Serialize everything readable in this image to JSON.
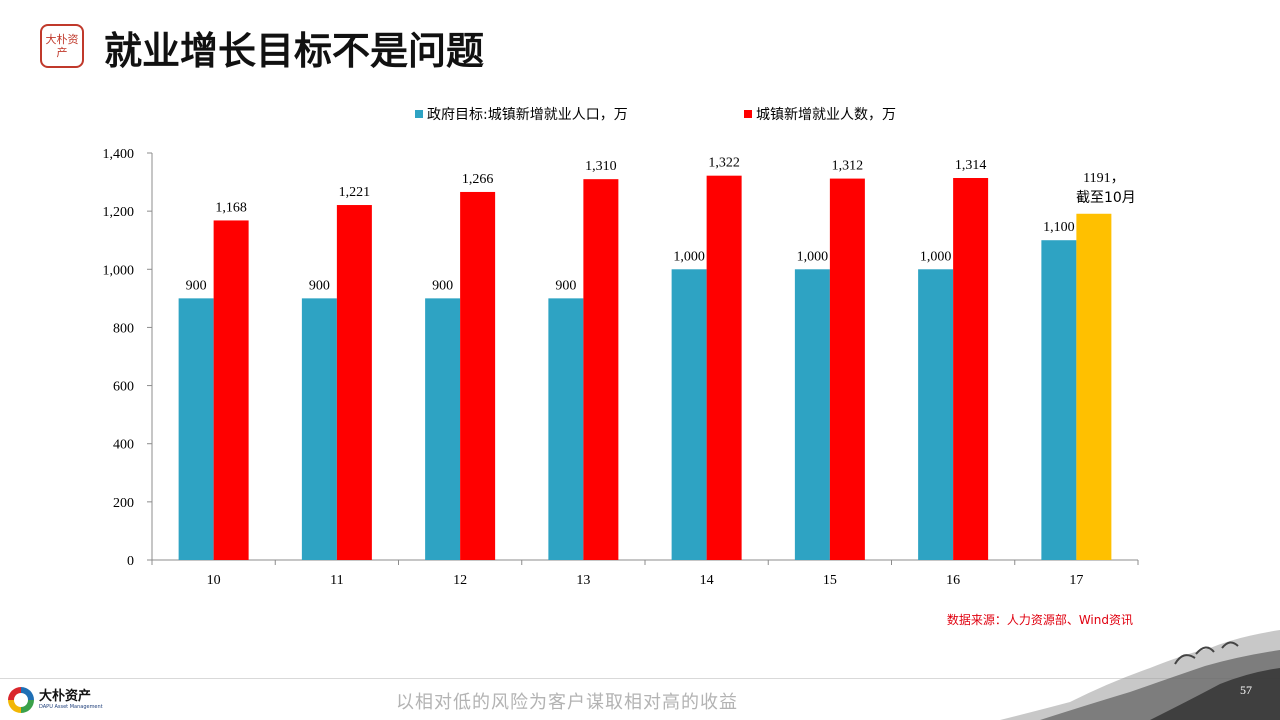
{
  "header": {
    "title": "就业增长目标不是问题",
    "seal_text": "大朴资产"
  },
  "chart_data": {
    "type": "bar",
    "categories": [
      "10",
      "11",
      "12",
      "13",
      "14",
      "15",
      "16",
      "17"
    ],
    "series": [
      {
        "name": "政府目标:城镇新增就业人口，万",
        "color": "#2ea3c3",
        "values": [
          900,
          900,
          900,
          900,
          1000,
          1000,
          1000,
          1100
        ],
        "labels": [
          "900",
          "900",
          "900",
          "900",
          "1,000",
          "1,000",
          "1,000",
          "1,100"
        ]
      },
      {
        "name": "城镇新增就业人数，万",
        "color": "#ff0000",
        "values": [
          1168,
          1221,
          1266,
          1310,
          1322,
          1312,
          1314,
          1191
        ],
        "labels": [
          "1,168",
          "1,221",
          "1,266",
          "1,310",
          "1,322",
          "1,312",
          "1,314",
          "1191，"
        ],
        "highlight": {
          "index": 7,
          "color": "#ffc000"
        }
      }
    ],
    "annotation": "截至10月",
    "y_ticks": [
      "0",
      "200",
      "400",
      "600",
      "800",
      "1,000",
      "1,200",
      "1,400"
    ],
    "ylim": [
      0,
      1400
    ],
    "legend_position": "top",
    "grid": false
  },
  "source_note": "数据来源：人力资源部、Wind资讯",
  "footer": {
    "logo_cn": "大朴资产",
    "logo_en": "DAPU Asset Management",
    "slogan": "以相对低的风险为客户谋取相对高的收益",
    "page_number": "57"
  }
}
